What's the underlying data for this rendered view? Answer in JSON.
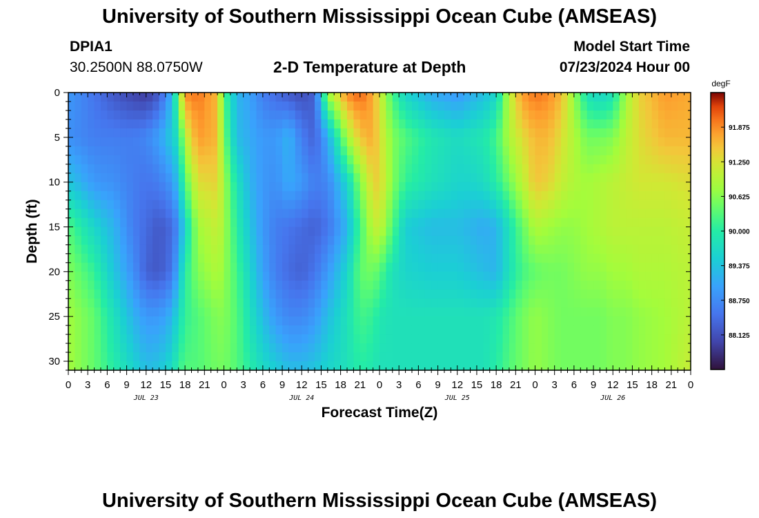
{
  "header": {
    "title": "University of Southern Mississippi Ocean Cube (AMSEAS)",
    "station": "DPIA1",
    "coordinates": "30.2500N  88.0750W",
    "plot_title": "2-D Temperature at Depth",
    "model_start_label": "Model Start Time",
    "model_start_value": "07/23/2024 Hour 00"
  },
  "footer": {
    "title": "University of Southern Mississippi Ocean Cube (AMSEAS)"
  },
  "chart_data": {
    "type": "heatmap",
    "xlabel": "Forecast Time(Z)",
    "ylabel": "Depth (ft)",
    "x_range_hours": [
      0,
      96
    ],
    "y_range_ft": [
      0,
      31
    ],
    "y_inverted": true,
    "x_tick_labels": [
      "0",
      "3",
      "6",
      "9",
      "12",
      "15",
      "18",
      "21",
      "0",
      "3",
      "6",
      "9",
      "12",
      "15",
      "18",
      "21",
      "0",
      "3",
      "6",
      "9",
      "12",
      "15",
      "18",
      "21",
      "0",
      "3",
      "6",
      "9",
      "12",
      "15",
      "18",
      "21",
      "0"
    ],
    "y_ticks": [
      0,
      5,
      10,
      15,
      20,
      25,
      30
    ],
    "y_tick_labels": [
      "0",
      "5",
      "10",
      "15",
      "20",
      "25",
      "30"
    ],
    "date_labels": [
      {
        "text": "JUL 23",
        "hour": 12
      },
      {
        "text": "JUL 24",
        "hour": 36
      },
      {
        "text": "JUL 25",
        "hour": 60
      },
      {
        "text": "JUL 26",
        "hour": 84
      }
    ],
    "colorbar": {
      "unit": "degF",
      "range": [
        87.5,
        92.5
      ],
      "ticks": [
        88.125,
        88.75,
        89.375,
        90.0,
        90.625,
        91.25,
        91.875
      ],
      "tick_labels": [
        "88.125",
        "88.750",
        "89.375",
        "90.000",
        "90.625",
        "91.250",
        "91.875"
      ]
    },
    "depths_ft": [
      0,
      5,
      10,
      15,
      20,
      25,
      31
    ],
    "times_hours": [
      0,
      4,
      7,
      10,
      12,
      14,
      16,
      17,
      18,
      20,
      23,
      24,
      26,
      28,
      30,
      32,
      34,
      36,
      38,
      40,
      43,
      45,
      47,
      48,
      50,
      52,
      56,
      60,
      62,
      64,
      66,
      68,
      70,
      72,
      74,
      76,
      78,
      80,
      82,
      84,
      86,
      88,
      92,
      96
    ],
    "temperature_degF_by_depth": [
      [
        88.9,
        88.5,
        88.2,
        88.0,
        87.9,
        88.2,
        89.2,
        90.6,
        91.9,
        92.0,
        91.6,
        90.3,
        89.2,
        89.0,
        88.6,
        88.4,
        88.2,
        88.1,
        88.3,
        90.8,
        91.9,
        92.1,
        91.7,
        91.2,
        90.2,
        89.6,
        89.1,
        88.9,
        89.1,
        89.3,
        89.6,
        91.0,
        91.8,
        92.0,
        91.9,
        91.6,
        90.7,
        89.8,
        89.6,
        89.8,
        90.8,
        91.4,
        91.8,
        91.7
      ],
      [
        88.8,
        88.6,
        88.6,
        88.6,
        88.7,
        89.0,
        89.5,
        89.8,
        91.0,
        91.8,
        91.6,
        90.5,
        89.3,
        89.1,
        88.9,
        88.9,
        89.2,
        88.6,
        88.3,
        89.1,
        90.8,
        91.5,
        91.7,
        91.3,
        90.6,
        90.3,
        89.9,
        89.7,
        89.8,
        89.9,
        90.2,
        90.9,
        91.3,
        91.6,
        91.6,
        91.3,
        90.9,
        90.5,
        90.5,
        90.6,
        91.0,
        91.3,
        91.6,
        91.6
      ],
      [
        89.4,
        88.9,
        88.8,
        88.6,
        88.5,
        88.6,
        88.9,
        89.4,
        90.3,
        91.3,
        91.4,
        90.8,
        89.8,
        89.2,
        88.9,
        88.8,
        89.1,
        88.9,
        88.6,
        88.7,
        89.6,
        90.6,
        91.4,
        91.4,
        90.6,
        90.1,
        89.8,
        89.6,
        89.6,
        89.7,
        90.0,
        90.5,
        91.0,
        91.5,
        91.4,
        91.1,
        90.9,
        90.8,
        90.9,
        91.0,
        91.1,
        91.2,
        91.2,
        91.3
      ],
      [
        90.3,
        89.6,
        89.2,
        88.6,
        88.4,
        88.2,
        88.4,
        88.8,
        89.6,
        90.8,
        91.1,
        90.8,
        90.0,
        89.4,
        88.9,
        88.6,
        88.5,
        88.4,
        88.3,
        88.5,
        89.2,
        90.2,
        91.0,
        91.1,
        90.3,
        89.5,
        89.3,
        89.3,
        89.2,
        89.1,
        89.2,
        89.8,
        90.4,
        90.9,
        90.8,
        90.7,
        90.7,
        90.8,
        90.9,
        91.0,
        91.0,
        91.0,
        91.0,
        91.1
      ],
      [
        90.6,
        90.1,
        89.4,
        88.8,
        88.3,
        88.2,
        88.5,
        89.2,
        90.0,
        90.6,
        90.9,
        90.7,
        90.2,
        89.6,
        89.0,
        88.6,
        88.4,
        88.3,
        88.5,
        88.9,
        89.6,
        90.4,
        90.5,
        90.3,
        89.8,
        89.6,
        89.5,
        89.5,
        89.4,
        89.3,
        89.2,
        89.8,
        90.2,
        90.4,
        90.5,
        90.5,
        90.6,
        90.7,
        90.7,
        90.8,
        90.8,
        90.9,
        90.9,
        91.0
      ],
      [
        90.8,
        90.4,
        89.8,
        89.2,
        88.9,
        88.9,
        89.2,
        89.7,
        90.1,
        90.3,
        90.6,
        90.6,
        90.3,
        89.8,
        89.3,
        88.9,
        88.7,
        88.7,
        88.9,
        89.3,
        89.8,
        90.2,
        90.1,
        89.9,
        89.8,
        89.8,
        89.8,
        89.8,
        89.8,
        89.8,
        89.9,
        90.2,
        90.5,
        90.7,
        90.6,
        90.5,
        90.5,
        90.5,
        90.5,
        90.6,
        90.6,
        90.7,
        90.8,
        91.0
      ],
      [
        90.8,
        90.4,
        90.0,
        89.6,
        89.3,
        89.4,
        89.7,
        90.1,
        90.3,
        90.3,
        90.5,
        90.5,
        90.3,
        90.0,
        89.7,
        89.5,
        89.3,
        89.3,
        89.4,
        89.6,
        89.8,
        90.0,
        89.9,
        89.8,
        89.8,
        89.8,
        89.8,
        89.8,
        89.8,
        89.8,
        90.0,
        90.3,
        90.5,
        90.7,
        90.6,
        90.5,
        90.5,
        90.5,
        90.5,
        90.6,
        90.6,
        90.7,
        90.8,
        91.1
      ]
    ]
  }
}
